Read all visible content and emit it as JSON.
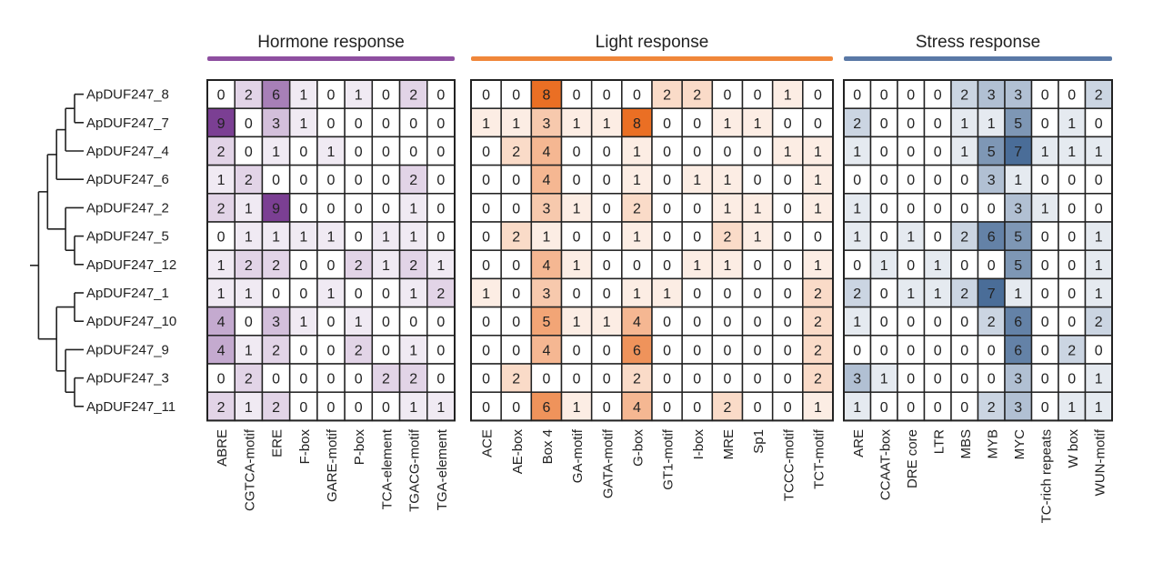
{
  "chart_data": {
    "type": "heatmap",
    "rows": [
      "ApDUF247_8",
      "ApDUF247_7",
      "ApDUF247_4",
      "ApDUF247_6",
      "ApDUF247_2",
      "ApDUF247_5",
      "ApDUF247_12",
      "ApDUF247_1",
      "ApDUF247_10",
      "ApDUF247_9",
      "ApDUF247_3",
      "ApDUF247_11"
    ],
    "tree": [
      [
        [
          [
            [
              "ApDUF247_8",
              "ApDUF247_7"
            ],
            "ApDUF247_4"
          ],
          "ApDUF247_6"
        ],
        [
          "ApDUF247_2",
          [
            "ApDUF247_5",
            "ApDUF247_12"
          ]
        ]
      ],
      [
        [
          "ApDUF247_1",
          "ApDUF247_10"
        ],
        [
          "ApDUF247_9",
          [
            "ApDUF247_3",
            "ApDUF247_11"
          ]
        ]
      ]
    ],
    "groups": [
      {
        "title": "Hormone response",
        "color": "#7b3f93",
        "bar_color": "#8e4fa0",
        "columns": [
          "ABRE",
          "CGTCA-motif",
          "ERE",
          "F-box",
          "GARE-motif",
          "P-box",
          "TCA-element",
          "TGACG-motif",
          "TGA-element"
        ],
        "values": [
          [
            0,
            2,
            6,
            1,
            0,
            1,
            0,
            2,
            0
          ],
          [
            9,
            0,
            3,
            1,
            0,
            0,
            0,
            0,
            0
          ],
          [
            2,
            0,
            1,
            0,
            1,
            0,
            0,
            0,
            0
          ],
          [
            1,
            2,
            0,
            0,
            0,
            0,
            0,
            2,
            0
          ],
          [
            2,
            1,
            9,
            0,
            0,
            0,
            0,
            1,
            0
          ],
          [
            0,
            1,
            1,
            1,
            1,
            0,
            1,
            1,
            0
          ],
          [
            1,
            2,
            2,
            0,
            0,
            2,
            1,
            2,
            1
          ],
          [
            1,
            1,
            0,
            0,
            1,
            0,
            0,
            1,
            2
          ],
          [
            4,
            0,
            3,
            1,
            0,
            1,
            0,
            0,
            0
          ],
          [
            4,
            1,
            2,
            0,
            0,
            2,
            0,
            1,
            0
          ],
          [
            0,
            2,
            0,
            0,
            0,
            0,
            2,
            2,
            0
          ],
          [
            2,
            1,
            2,
            0,
            0,
            0,
            0,
            1,
            1
          ]
        ]
      },
      {
        "title": "Light response",
        "color": "#ea6f24",
        "bar_color": "#f0873a",
        "columns": [
          "ACE",
          "AE-box",
          "Box 4",
          "GA-motif",
          "GATA-motif",
          "G-box",
          "GT1-motif",
          "I-box",
          "MRE",
          "Sp1",
          "TCCC-motif",
          "TCT-motif"
        ],
        "values": [
          [
            0,
            0,
            8,
            0,
            0,
            0,
            2,
            2,
            0,
            0,
            1,
            0
          ],
          [
            1,
            1,
            3,
            1,
            1,
            8,
            0,
            0,
            1,
            1,
            0,
            0
          ],
          [
            0,
            2,
            4,
            0,
            0,
            1,
            0,
            0,
            0,
            0,
            1,
            1
          ],
          [
            0,
            0,
            4,
            0,
            0,
            1,
            0,
            1,
            1,
            0,
            0,
            1
          ],
          [
            0,
            0,
            3,
            1,
            0,
            2,
            0,
            0,
            1,
            1,
            0,
            1
          ],
          [
            0,
            2,
            1,
            0,
            0,
            1,
            0,
            0,
            2,
            1,
            0,
            0
          ],
          [
            0,
            0,
            4,
            1,
            0,
            0,
            0,
            1,
            1,
            0,
            0,
            1
          ],
          [
            1,
            0,
            3,
            0,
            0,
            1,
            1,
            0,
            0,
            0,
            0,
            2
          ],
          [
            0,
            0,
            5,
            1,
            1,
            4,
            0,
            0,
            0,
            0,
            0,
            2
          ],
          [
            0,
            0,
            4,
            0,
            0,
            6,
            0,
            0,
            0,
            0,
            0,
            2
          ],
          [
            0,
            2,
            0,
            0,
            0,
            2,
            0,
            0,
            0,
            0,
            0,
            2
          ],
          [
            0,
            0,
            6,
            1,
            0,
            4,
            0,
            0,
            2,
            0,
            0,
            1
          ]
        ]
      },
      {
        "title": "Stress response",
        "color": "#4a6d98",
        "bar_color": "#5a79a6",
        "columns": [
          "ARE",
          "CCAAT-box",
          "DRE core",
          "LTR",
          "MBS",
          "MYB",
          "MYC",
          "TC-rich repeats",
          "W box",
          "WUN-motif"
        ],
        "values": [
          [
            0,
            0,
            0,
            0,
            2,
            3,
            3,
            0,
            0,
            2
          ],
          [
            2,
            0,
            0,
            0,
            1,
            1,
            5,
            0,
            1,
            0
          ],
          [
            1,
            0,
            0,
            0,
            1,
            5,
            7,
            1,
            1,
            1
          ],
          [
            0,
            0,
            0,
            0,
            0,
            3,
            1,
            0,
            0,
            0
          ],
          [
            1,
            0,
            0,
            0,
            0,
            0,
            3,
            1,
            0,
            0
          ],
          [
            1,
            0,
            1,
            0,
            2,
            6,
            5,
            0,
            0,
            1
          ],
          [
            0,
            1,
            0,
            1,
            0,
            0,
            5,
            0,
            0,
            1
          ],
          [
            2,
            0,
            1,
            1,
            2,
            7,
            1,
            0,
            0,
            1
          ],
          [
            1,
            0,
            0,
            0,
            0,
            2,
            6,
            0,
            0,
            2
          ],
          [
            0,
            0,
            0,
            0,
            0,
            0,
            6,
            0,
            2,
            0
          ],
          [
            3,
            1,
            0,
            0,
            0,
            0,
            3,
            0,
            0,
            1
          ],
          [
            1,
            0,
            0,
            0,
            0,
            2,
            3,
            0,
            1,
            1
          ]
        ]
      }
    ]
  }
}
